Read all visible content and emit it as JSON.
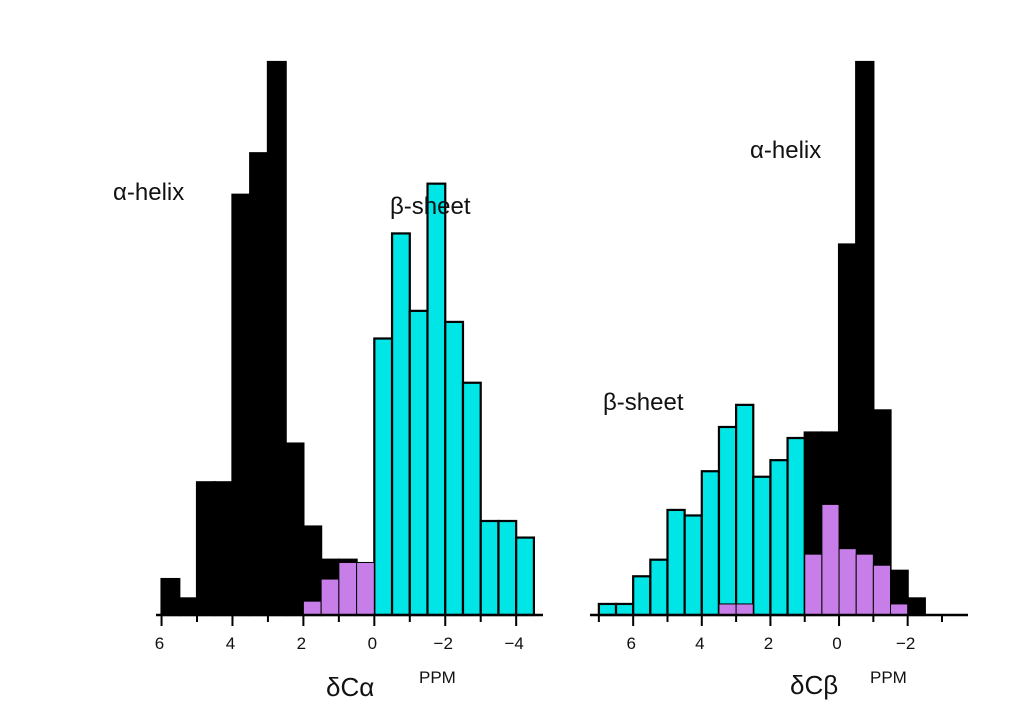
{
  "colors": {
    "alpha": "#000000",
    "beta": "#00e5e5",
    "overlap": "#c77ee8",
    "edge": "#000000"
  },
  "chart_data": [
    {
      "type": "bar",
      "subtype": "overlapping-histogram",
      "xlabel": "δCα",
      "unit": "PPM",
      "x_reversed": true,
      "xlim": [
        6.1,
        -4.7
      ],
      "xticks": [
        6,
        4,
        2,
        0,
        -2,
        -4
      ],
      "xtick_labels": [
        "6",
        "4",
        "2",
        "0",
        "−2",
        "−4"
      ],
      "ylim": [
        0,
        100
      ],
      "annotations": [
        "α-helix",
        "β-sheet"
      ],
      "bin_width": 0.5,
      "series": [
        {
          "name": "α-helix",
          "bin_starts": [
            6.0,
            5.5,
            5.0,
            4.5,
            4.0,
            3.5,
            3.0,
            2.5,
            2.0,
            1.5,
            1.0,
            0.5
          ],
          "values": [
            6.5,
            3,
            24,
            24,
            76,
            83.5,
            100,
            31,
            16,
            10,
            10,
            6
          ]
        },
        {
          "name": "β-sheet",
          "bin_starts": [
            0.0,
            -0.5,
            -1.0,
            -1.5,
            -2.0,
            -2.5,
            -3.0,
            -3.5,
            -4.0
          ],
          "values": [
            50,
            69,
            55,
            78,
            53,
            42,
            17,
            17,
            14
          ]
        },
        {
          "name": "overlap",
          "bin_starts": [
            2.0,
            1.5,
            1.0,
            0.5
          ],
          "values": [
            2.5,
            6.5,
            9.5,
            9.5
          ]
        }
      ]
    },
    {
      "type": "bar",
      "subtype": "overlapping-histogram",
      "xlabel": "δCβ",
      "unit": "PPM",
      "x_reversed": true,
      "xlim": [
        7.2,
        -3.7
      ],
      "xticks": [
        6,
        4,
        2,
        0,
        -2
      ],
      "xtick_labels": [
        "6",
        "4",
        "2",
        "0",
        "−2"
      ],
      "ylim": [
        0,
        100
      ],
      "annotations": [
        "α-helix",
        "β-sheet"
      ],
      "bin_width": 0.5,
      "series": [
        {
          "name": "α-helix",
          "bin_starts": [
            1.5,
            1.0,
            0.5,
            0.0,
            -0.5,
            -1.0,
            -1.5,
            -2.0
          ],
          "values": [
            32,
            33,
            33,
            67,
            100,
            37,
            8,
            3
          ]
        },
        {
          "name": "β-sheet",
          "bin_starts": [
            7.0,
            6.5,
            6.0,
            5.5,
            5.0,
            4.5,
            4.0,
            3.5,
            3.0,
            2.5,
            2.0,
            1.5
          ],
          "values": [
            2,
            2,
            7,
            10,
            19,
            18,
            26,
            34,
            38,
            25,
            28,
            32
          ]
        },
        {
          "name": "overlap",
          "bin_starts": [
            3.5,
            3.0,
            1.0,
            0.5,
            0.0,
            -0.5,
            -1.0,
            -1.5
          ],
          "values": [
            2,
            2,
            11,
            20,
            12,
            11,
            9,
            2
          ]
        }
      ]
    }
  ]
}
